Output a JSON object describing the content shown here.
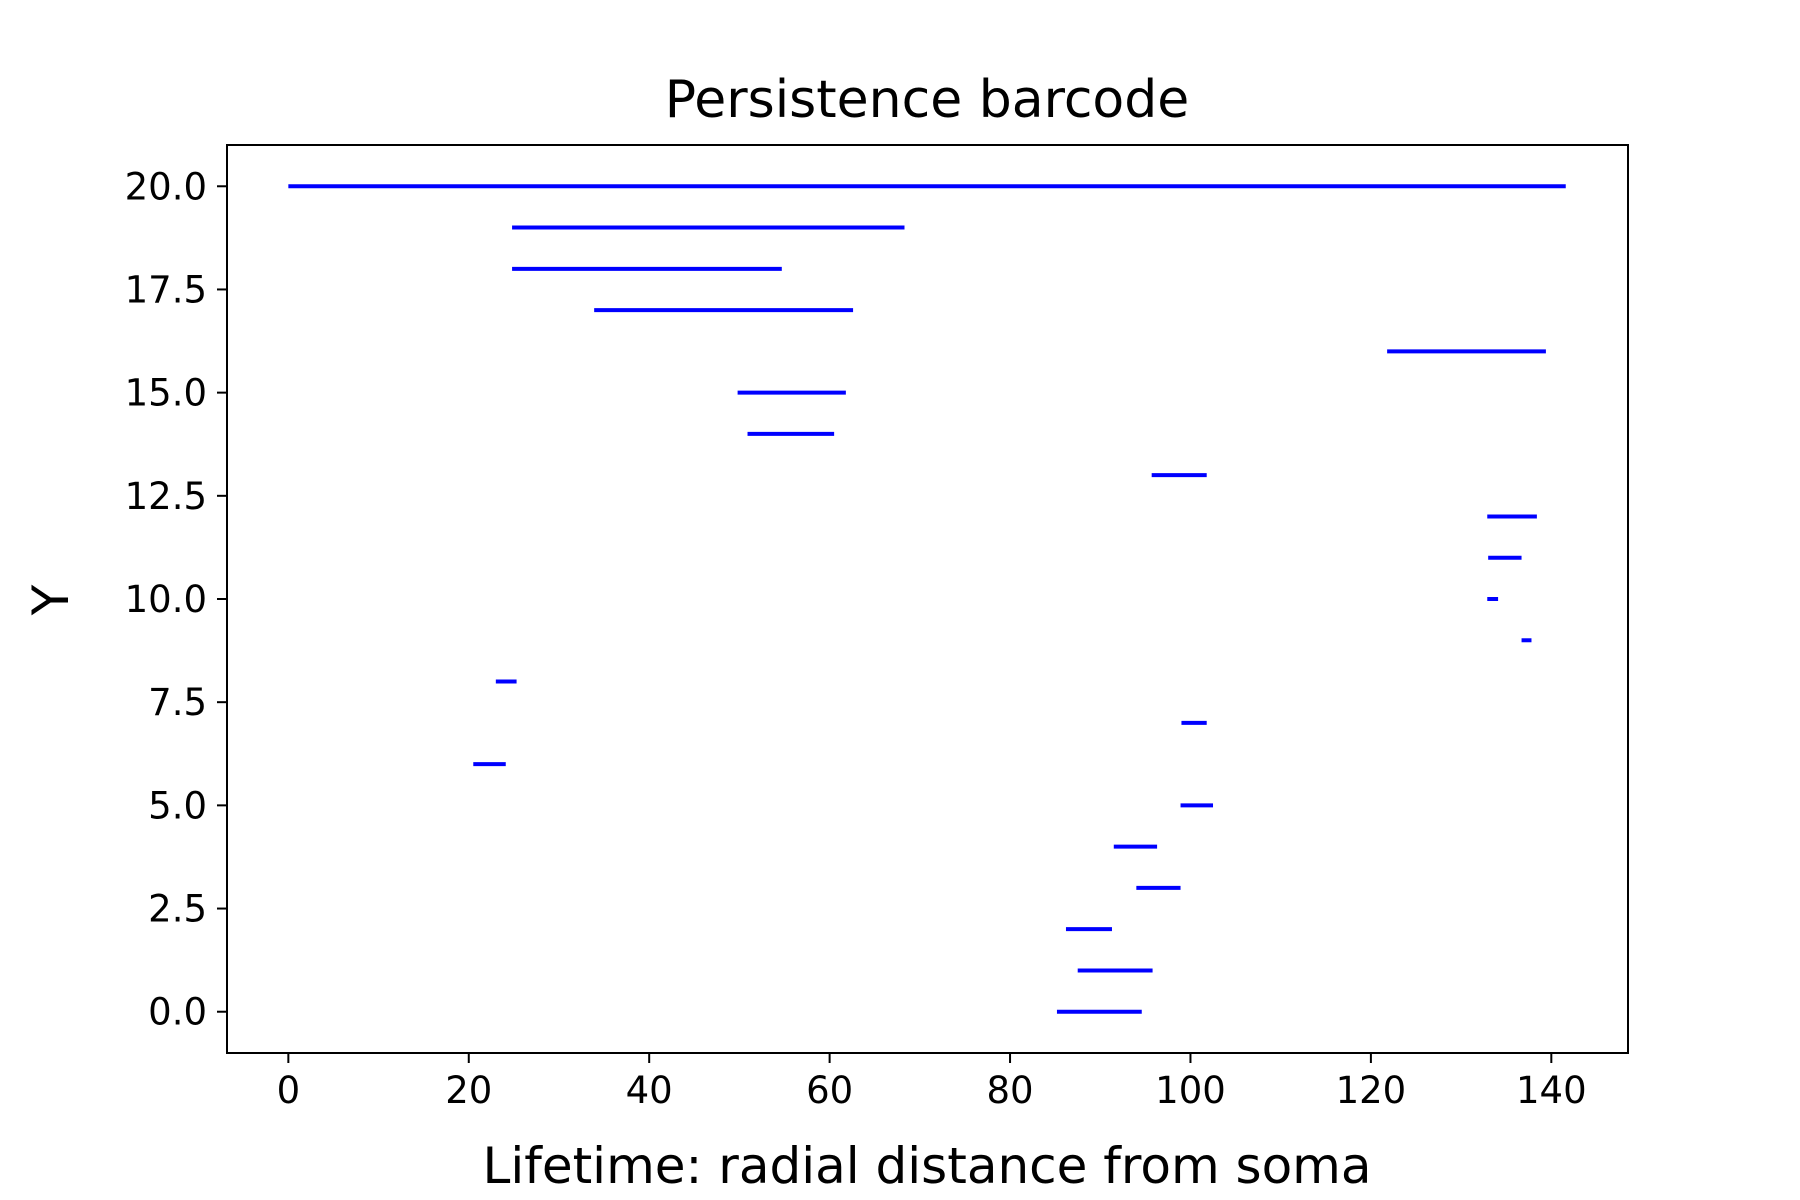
{
  "chart_data": {
    "type": "barcode",
    "title": "Persistence barcode",
    "xlabel": "Lifetime: radial distance from soma",
    "ylabel": "Y",
    "xlim": [
      -6.8,
      148.5
    ],
    "ylim": [
      -1.0,
      21.0
    ],
    "xticks": [
      0,
      20,
      40,
      60,
      80,
      100,
      120,
      140
    ],
    "xtick_labels": [
      "0",
      "20",
      "40",
      "60",
      "80",
      "100",
      "120",
      "140"
    ],
    "yticks": [
      0.0,
      2.5,
      5.0,
      7.5,
      10.0,
      12.5,
      15.0,
      17.5,
      20.0
    ],
    "ytick_labels": [
      "0.0",
      "2.5",
      "5.0",
      "7.5",
      "10.0",
      "12.5",
      "15.0",
      "17.5",
      "20.0"
    ],
    "grid": false,
    "color": "#0000ff",
    "bars": [
      {
        "y": 0,
        "start": 85.2,
        "end": 94.6
      },
      {
        "y": 1,
        "start": 87.5,
        "end": 95.8
      },
      {
        "y": 2,
        "start": 86.2,
        "end": 91.3
      },
      {
        "y": 3,
        "start": 94.0,
        "end": 98.9
      },
      {
        "y": 4,
        "start": 91.5,
        "end": 96.3
      },
      {
        "y": 5,
        "start": 98.9,
        "end": 102.5
      },
      {
        "y": 6,
        "start": 20.5,
        "end": 24.1
      },
      {
        "y": 7,
        "start": 99.0,
        "end": 101.8
      },
      {
        "y": 8,
        "start": 23.0,
        "end": 25.3
      },
      {
        "y": 9,
        "start": 136.7,
        "end": 137.8
      },
      {
        "y": 10,
        "start": 132.9,
        "end": 134.1
      },
      {
        "y": 11,
        "start": 133.0,
        "end": 136.7
      },
      {
        "y": 12,
        "start": 132.9,
        "end": 138.4
      },
      {
        "y": 13,
        "start": 95.7,
        "end": 101.8
      },
      {
        "y": 14,
        "start": 50.9,
        "end": 60.5
      },
      {
        "y": 15,
        "start": 49.8,
        "end": 61.8
      },
      {
        "y": 16,
        "start": 121.8,
        "end": 139.4
      },
      {
        "y": 17,
        "start": 33.9,
        "end": 62.6
      },
      {
        "y": 18,
        "start": 24.8,
        "end": 54.7
      },
      {
        "y": 19,
        "start": 24.8,
        "end": 68.3
      },
      {
        "y": 20,
        "start": 0.0,
        "end": 141.6
      }
    ]
  }
}
